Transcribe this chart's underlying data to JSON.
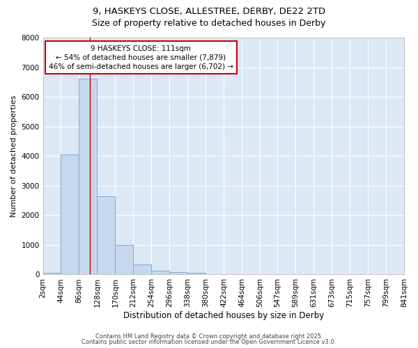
{
  "title_line1": "9, HASKEYS CLOSE, ALLESTREE, DERBY, DE22 2TD",
  "title_line2": "Size of property relative to detached houses in Derby",
  "xlabel": "Distribution of detached houses by size in Derby",
  "ylabel": "Number of detached properties",
  "bar_color": "#c5d8f0",
  "bar_edge_color": "#7aadd4",
  "plot_bg_color": "#dce8f5",
  "fig_bg_color": "#ffffff",
  "grid_color": "#ffffff",
  "bins": [
    2,
    44,
    86,
    128,
    170,
    212,
    254,
    296,
    338,
    380,
    422,
    464,
    506,
    547,
    589,
    631,
    673,
    715,
    757,
    799,
    841
  ],
  "bin_labels": [
    "2sqm",
    "44sqm",
    "86sqm",
    "128sqm",
    "170sqm",
    "212sqm",
    "254sqm",
    "296sqm",
    "338sqm",
    "380sqm",
    "422sqm",
    "464sqm",
    "506sqm",
    "547sqm",
    "589sqm",
    "631sqm",
    "673sqm",
    "715sqm",
    "757sqm",
    "799sqm",
    "841sqm"
  ],
  "values": [
    50,
    4050,
    6620,
    2650,
    1000,
    350,
    130,
    90,
    50,
    0,
    0,
    0,
    0,
    0,
    0,
    0,
    0,
    0,
    0,
    0
  ],
  "ylim": [
    0,
    8000
  ],
  "yticks": [
    0,
    1000,
    2000,
    3000,
    4000,
    5000,
    6000,
    7000,
    8000
  ],
  "property_size": 111,
  "red_line_color": "#cc0000",
  "annotation_text": "9 HASKEYS CLOSE: 111sqm\n← 54% of detached houses are smaller (7,879)\n46% of semi-detached houses are larger (6,702) →",
  "annotation_box_color": "#ffffff",
  "annotation_box_edge_color": "#cc0000",
  "footer_line1": "Contains HM Land Registry data © Crown copyright and database right 2025.",
  "footer_line2": "Contains public sector information licensed under the Open Government Licence v3.0.",
  "footer_fontsize": 6.0,
  "title1_fontsize": 9.5,
  "title2_fontsize": 9.0,
  "xlabel_fontsize": 8.5,
  "ylabel_fontsize": 8.0,
  "tick_fontsize": 7.5,
  "annot_fontsize": 7.5
}
